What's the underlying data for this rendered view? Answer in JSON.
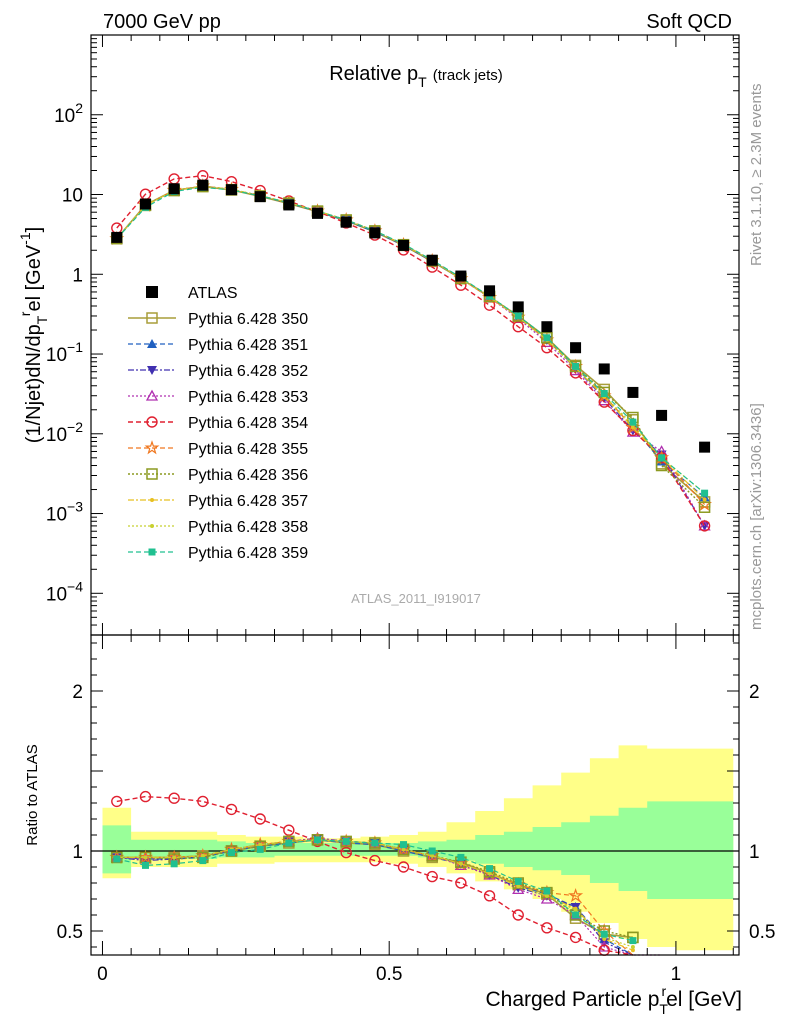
{
  "header": {
    "left": "7000 GeV pp",
    "right": "Soft QCD",
    "side_top": "Rivet 3.1.10, ≥ 2.3M events",
    "side_bottom": "mcplots.cern.ch [arXiv:1306.3436]",
    "watermark": "ATLAS_2011_I919017"
  },
  "colors": {
    "band_inner": "#99ff99",
    "band_outer": "#ffff88",
    "s350": "#a89d3a",
    "s351": "#2060c0",
    "s352": "#4030b0",
    "s353": "#b030b0",
    "s354": "#e02030",
    "s355": "#f07820",
    "s356": "#8c9a20",
    "s357": "#e8c020",
    "s358": "#c8d030",
    "s359": "#20c090"
  },
  "chart_data": [
    {
      "type": "scatter",
      "title": "Relative p_T (track jets)",
      "title_main": "Relative p",
      "title_sub": "T",
      "title_note": "(track jets)",
      "ylabel": "(1/Njet)dN/dp_T^rel [GeV^-1]",
      "yscale": "log",
      "ylim": [
        3e-05,
        1000
      ],
      "xlim": [
        -0.02,
        1.11
      ],
      "legend_position": "left",
      "y_tick_labels": [
        "10^-4",
        "10^-3",
        "10^-2",
        "10^-1",
        "1",
        "10",
        "10^2"
      ],
      "x": [
        0.025,
        0.075,
        0.125,
        0.175,
        0.225,
        0.275,
        0.325,
        0.375,
        0.425,
        0.475,
        0.525,
        0.575,
        0.625,
        0.675,
        0.725,
        0.775,
        0.825,
        0.875,
        0.925,
        0.975,
        1.05
      ],
      "data_series": {
        "name": "ATLAS",
        "values": [
          2.9,
          7.6,
          11.8,
          13.1,
          11.5,
          9.4,
          7.4,
          5.8,
          4.5,
          3.3,
          2.3,
          1.5,
          0.95,
          0.62,
          0.39,
          0.22,
          0.12,
          0.065,
          0.033,
          0.017,
          0.0068
        ]
      },
      "series": [
        {
          "name": "Pythia 6.428 350",
          "values": [
            2.8,
            7.4,
            11.3,
            12.6,
            11.4,
            9.5,
            7.7,
            6.1,
            4.7,
            3.4,
            2.3,
            1.45,
            0.88,
            0.52,
            0.3,
            0.16,
            0.072,
            0.036,
            0.015,
            0.0042,
            0.0014
          ]
        },
        {
          "name": "Pythia 6.428 351",
          "values": [
            2.8,
            7.3,
            11.2,
            12.6,
            11.5,
            9.6,
            7.8,
            6.1,
            4.7,
            3.4,
            2.3,
            1.45,
            0.88,
            0.52,
            0.29,
            0.15,
            0.068,
            0.03,
            0.012,
            0.0045,
            0.0016
          ]
        },
        {
          "name": "Pythia 6.428 352",
          "values": [
            2.8,
            7.3,
            11.3,
            12.8,
            11.6,
            9.6,
            7.8,
            6.2,
            4.8,
            3.5,
            2.35,
            1.5,
            0.9,
            0.52,
            0.29,
            0.15,
            0.066,
            0.028,
            0.011,
            0.0055,
            0.0007
          ]
        },
        {
          "name": "Pythia 6.428 353",
          "values": [
            2.8,
            7.3,
            11.3,
            12.7,
            11.6,
            9.7,
            7.9,
            6.2,
            4.8,
            3.5,
            2.35,
            1.48,
            0.88,
            0.51,
            0.28,
            0.14,
            0.062,
            0.026,
            0.0105,
            0.006,
            0.0007
          ]
        },
        {
          "name": "Pythia 6.428 354",
          "values": [
            3.8,
            10.1,
            15.7,
            17.2,
            14.5,
            11.2,
            8.3,
            6.1,
            4.4,
            3.1,
            2.02,
            1.23,
            0.73,
            0.41,
            0.22,
            0.12,
            0.058,
            0.025,
            0.011,
            0.005,
            0.0007
          ]
        },
        {
          "name": "Pythia 6.428 355",
          "values": [
            2.8,
            7.3,
            11.3,
            12.8,
            11.6,
            9.7,
            7.9,
            6.2,
            4.8,
            3.5,
            2.35,
            1.48,
            0.88,
            0.51,
            0.29,
            0.15,
            0.07,
            0.03,
            0.012,
            0.005,
            0.0013
          ]
        },
        {
          "name": "Pythia 6.428 356",
          "values": [
            2.8,
            7.3,
            11.2,
            12.6,
            11.5,
            9.6,
            7.8,
            6.2,
            4.8,
            3.5,
            2.35,
            1.48,
            0.89,
            0.53,
            0.3,
            0.16,
            0.07,
            0.033,
            0.016,
            0.004,
            0.0012
          ]
        },
        {
          "name": "Pythia 6.428 357",
          "values": [
            2.8,
            7.3,
            11.3,
            12.7,
            11.6,
            9.7,
            7.9,
            6.2,
            4.8,
            3.5,
            2.35,
            1.49,
            0.88,
            0.52,
            0.29,
            0.15,
            0.067,
            0.029,
            0.012,
            0.005,
            0.0015
          ]
        },
        {
          "name": "Pythia 6.428 358",
          "values": [
            2.8,
            7.3,
            11.3,
            12.7,
            11.6,
            9.7,
            7.9,
            6.2,
            4.8,
            3.5,
            2.35,
            1.49,
            0.88,
            0.52,
            0.29,
            0.15,
            0.067,
            0.03,
            0.013,
            0.005,
            0.0018
          ]
        },
        {
          "name": "Pythia 6.428 359",
          "values": [
            2.8,
            6.9,
            10.9,
            12.3,
            11.4,
            9.6,
            7.9,
            6.2,
            4.8,
            3.5,
            2.4,
            1.5,
            0.91,
            0.53,
            0.3,
            0.16,
            0.07,
            0.032,
            0.014,
            0.005,
            0.0018
          ]
        }
      ]
    },
    {
      "type": "scatter",
      "title": "",
      "ylabel": "Ratio to ATLAS",
      "xlabel": "Charged Particle p_T^rel [GeV]",
      "xlabel_main": "Charged Particle p",
      "xlabel_sub": "T",
      "xlabel_sup": "r",
      "xlabel_tail": "el [GeV]",
      "ylim": [
        0.35,
        2.35
      ],
      "xlim": [
        -0.02,
        1.11
      ],
      "x_tick_labels": [
        "0",
        "0.5",
        "1"
      ],
      "y_tick_labels": [
        "0.5",
        "1",
        "2"
      ],
      "reference": 1,
      "x": [
        0.025,
        0.075,
        0.125,
        0.175,
        0.225,
        0.275,
        0.325,
        0.375,
        0.425,
        0.475,
        0.525,
        0.575,
        0.625,
        0.675,
        0.725,
        0.775,
        0.825,
        0.875,
        0.925,
        0.975,
        1.05
      ],
      "bin_edges": [
        0.0,
        0.05,
        0.1,
        0.15,
        0.2,
        0.25,
        0.3,
        0.35,
        0.4,
        0.45,
        0.5,
        0.55,
        0.6,
        0.65,
        0.7,
        0.75,
        0.8,
        0.85,
        0.9,
        0.95,
        1.0,
        1.1
      ],
      "band_inner": {
        "low": [
          0.86,
          0.95,
          0.95,
          0.95,
          0.96,
          0.96,
          0.97,
          0.97,
          0.97,
          0.97,
          0.97,
          0.96,
          0.94,
          0.92,
          0.9,
          0.88,
          0.85,
          0.8,
          0.75,
          0.7,
          0.7
        ],
        "high": [
          1.16,
          1.07,
          1.07,
          1.07,
          1.06,
          1.05,
          1.05,
          1.05,
          1.05,
          1.05,
          1.05,
          1.06,
          1.07,
          1.1,
          1.12,
          1.15,
          1.18,
          1.22,
          1.27,
          1.31,
          1.31
        ]
      },
      "band_outer": {
        "low": [
          0.83,
          0.9,
          0.9,
          0.9,
          0.92,
          0.92,
          0.93,
          0.93,
          0.93,
          0.93,
          0.92,
          0.9,
          0.86,
          0.81,
          0.76,
          0.7,
          0.62,
          0.55,
          0.45,
          0.4,
          0.38
        ],
        "high": [
          1.27,
          1.12,
          1.12,
          1.12,
          1.1,
          1.09,
          1.09,
          1.08,
          1.08,
          1.09,
          1.1,
          1.12,
          1.18,
          1.25,
          1.33,
          1.41,
          1.49,
          1.58,
          1.66,
          1.64,
          1.64
        ]
      },
      "series": [
        {
          "name": "Pythia 6.428 350",
          "values": [
            0.96,
            0.96,
            0.96,
            0.97,
            1.0,
            1.03,
            1.05,
            1.07,
            1.05,
            1.04,
            1.0,
            0.96,
            0.93,
            0.86,
            0.79,
            0.73,
            0.58,
            0.48,
            0.46,
            null,
            null
          ]
        },
        {
          "name": "Pythia 6.428 351",
          "values": [
            0.96,
            0.95,
            0.95,
            0.96,
            1.0,
            1.03,
            1.05,
            1.07,
            1.05,
            1.04,
            1.0,
            0.96,
            0.92,
            0.86,
            0.78,
            0.73,
            0.65,
            0.45,
            0.3,
            null,
            null
          ]
        },
        {
          "name": "Pythia 6.428 352",
          "values": [
            0.96,
            0.94,
            0.95,
            0.97,
            1.01,
            1.04,
            1.06,
            1.08,
            1.06,
            1.05,
            1.01,
            0.97,
            0.92,
            0.85,
            0.77,
            0.72,
            0.65,
            0.43,
            0.3,
            null,
            null
          ]
        },
        {
          "name": "Pythia 6.428 353",
          "values": [
            0.96,
            0.95,
            0.96,
            0.97,
            1.0,
            1.04,
            1.06,
            1.08,
            1.06,
            1.05,
            1.01,
            0.97,
            0.91,
            0.85,
            0.76,
            0.7,
            0.6,
            0.4,
            0.33,
            0.35,
            null
          ]
        },
        {
          "name": "Pythia 6.428 354",
          "values": [
            1.31,
            1.34,
            1.33,
            1.31,
            1.26,
            1.2,
            1.13,
            1.06,
            0.99,
            0.94,
            0.9,
            0.84,
            0.8,
            0.72,
            0.6,
            0.52,
            0.46,
            0.38,
            0.3,
            null,
            null
          ]
        },
        {
          "name": "Pythia 6.428 355",
          "values": [
            0.96,
            0.96,
            0.96,
            0.97,
            1.01,
            1.04,
            1.06,
            1.07,
            1.06,
            1.05,
            1.01,
            0.97,
            0.92,
            0.86,
            0.79,
            0.74,
            0.72,
            0.5,
            0.35,
            null,
            null
          ]
        },
        {
          "name": "Pythia 6.428 356",
          "values": [
            0.96,
            0.96,
            0.95,
            0.96,
            1.0,
            1.03,
            1.06,
            1.07,
            1.06,
            1.05,
            1.01,
            0.97,
            0.93,
            0.87,
            0.8,
            0.74,
            0.6,
            0.5,
            0.46,
            null,
            null
          ]
        },
        {
          "name": "Pythia 6.428 357",
          "values": [
            0.96,
            0.96,
            0.96,
            0.97,
            1.01,
            1.04,
            1.06,
            1.07,
            1.06,
            1.05,
            1.01,
            0.97,
            0.92,
            0.86,
            0.78,
            0.72,
            0.64,
            0.45,
            0.38,
            null,
            null
          ]
        },
        {
          "name": "Pythia 6.428 358",
          "values": [
            0.96,
            0.96,
            0.96,
            0.97,
            1.01,
            1.04,
            1.06,
            1.07,
            1.06,
            1.05,
            1.01,
            0.97,
            0.92,
            0.86,
            0.78,
            0.72,
            0.63,
            0.46,
            0.4,
            null,
            null
          ]
        },
        {
          "name": "Pythia 6.428 359",
          "values": [
            0.95,
            0.91,
            0.92,
            0.94,
            0.99,
            1.01,
            1.05,
            1.07,
            1.06,
            1.05,
            1.04,
            1.0,
            0.96,
            0.89,
            0.81,
            0.75,
            0.6,
            0.48,
            0.44,
            null,
            null
          ]
        }
      ]
    }
  ]
}
